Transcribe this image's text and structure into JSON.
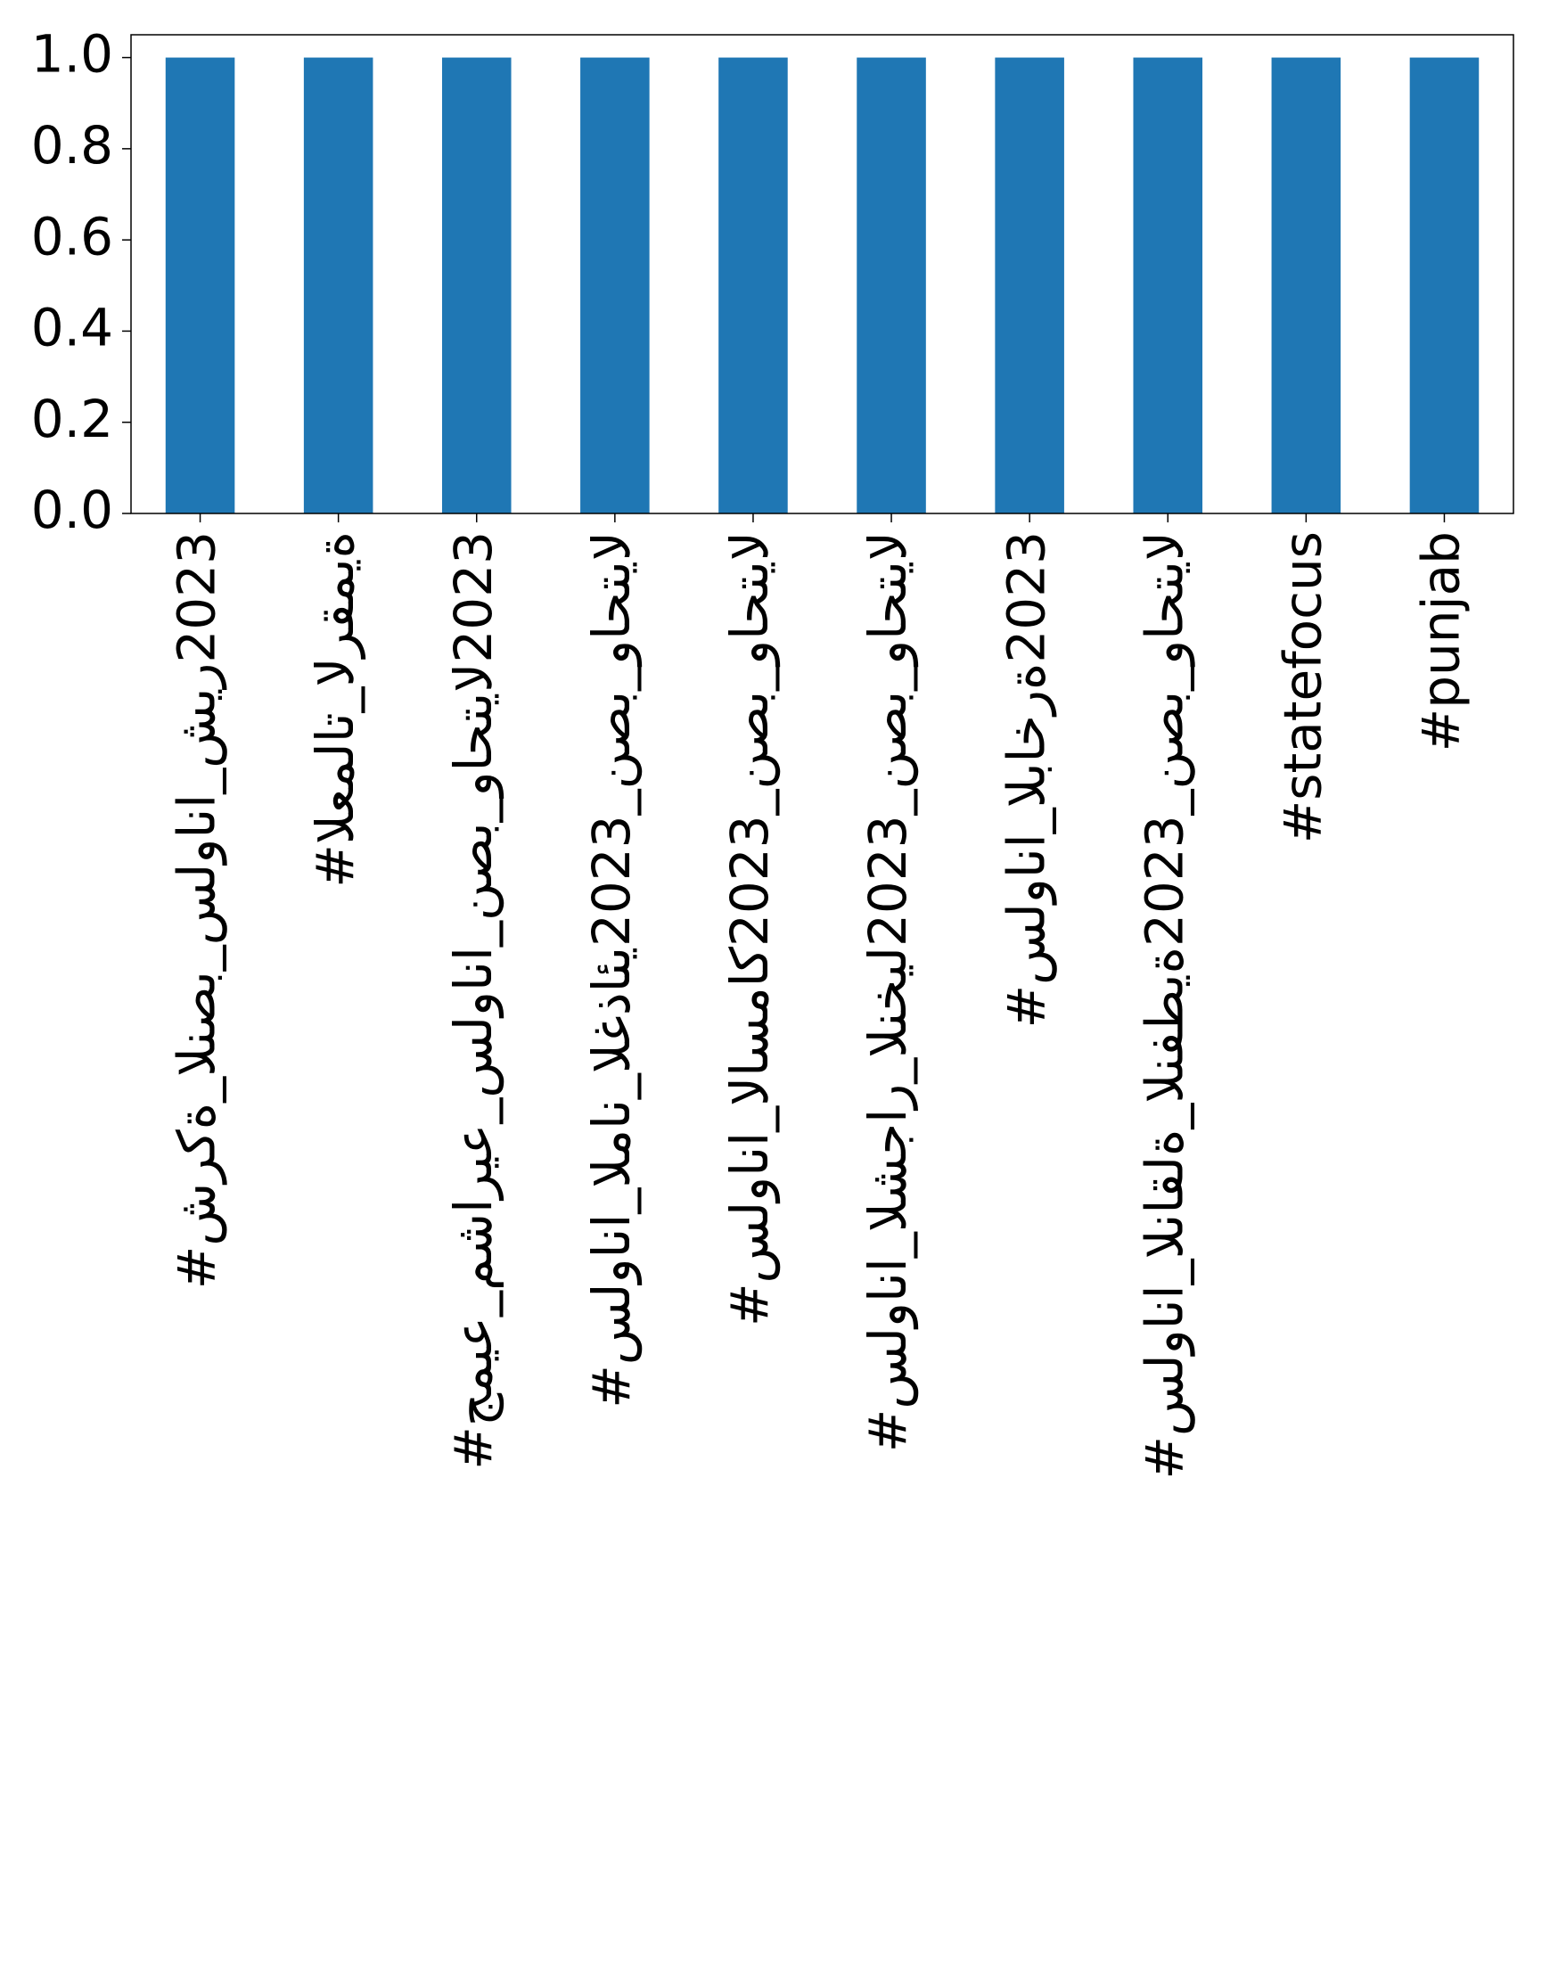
{
  "chart_data": {
    "type": "bar",
    "categories": [
      "#شركة_النصب_سلوانا_شير2023",
      "#العملات_الرقمية",
      "#جميع_مشاريع_سلوانا_نصب_واحتيال2023",
      "#سلوانا_المان_الغذائي2023_نصب_واحتيال",
      "#سلوانا_الاسماك2023_نصب_واحتيال",
      "#سلوانا_الشجار_النخيل2023_نصب_واحتيال",
      "#سلوانا_الباخرة2023",
      "#سلوانا_الناقلة_النفطية2023_نصب_واحتيال",
      "#statefocus",
      "#punjab"
    ],
    "values": [
      1,
      1,
      1,
      1,
      1,
      1,
      1,
      1,
      1,
      1
    ],
    "color": "#1f77b4",
    "ylim": [
      0,
      1.05
    ],
    "yticks": [
      {
        "value": 0,
        "label": "0.0"
      },
      {
        "value": 0.2,
        "label": "0.2"
      },
      {
        "value": 0.4,
        "label": "0.4"
      },
      {
        "value": 0.6,
        "label": "0.6"
      },
      {
        "value": 0.8,
        "label": "0.8"
      },
      {
        "value": 1,
        "label": "1.0"
      }
    ],
    "grid": false
  }
}
